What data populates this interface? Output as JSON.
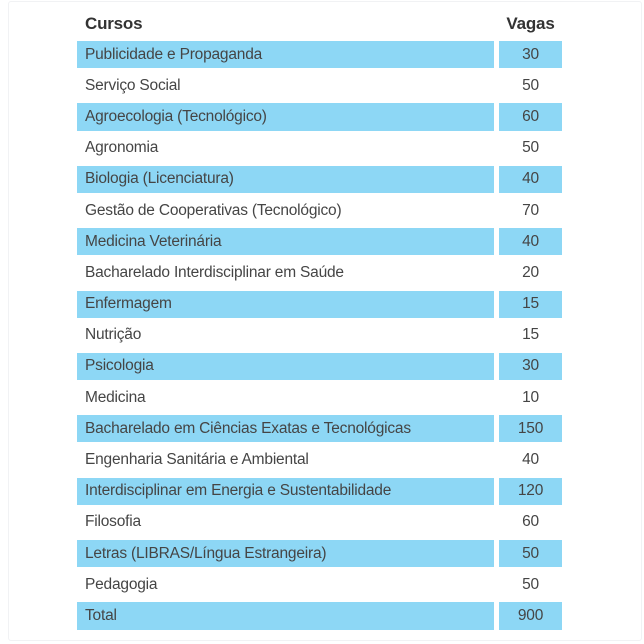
{
  "table": {
    "columns": {
      "course": "Cursos",
      "vagas": "Vagas"
    },
    "rows": [
      {
        "course": "Publicidade e Propaganda",
        "vagas": 30,
        "striped": true
      },
      {
        "course": "Serviço Social",
        "vagas": 50,
        "striped": false
      },
      {
        "course": "Agroecologia (Tecnológico)",
        "vagas": 60,
        "striped": true
      },
      {
        "course": "Agronomia",
        "vagas": 50,
        "striped": false
      },
      {
        "course": "Biologia (Licenciatura)",
        "vagas": 40,
        "striped": true
      },
      {
        "course": "Gestão de Cooperativas (Tecnológico)",
        "vagas": 70,
        "striped": false
      },
      {
        "course": "Medicina Veterinária",
        "vagas": 40,
        "striped": true
      },
      {
        "course": "Bacharelado Interdisciplinar em Saúde",
        "vagas": 20,
        "striped": false
      },
      {
        "course": "Enfermagem",
        "vagas": 15,
        "striped": true
      },
      {
        "course": "Nutrição",
        "vagas": 15,
        "striped": false
      },
      {
        "course": "Psicologia",
        "vagas": 30,
        "striped": true
      },
      {
        "course": "Medicina",
        "vagas": 10,
        "striped": false
      },
      {
        "course": "Bacharelado em Ciências Exatas e Tecnológicas",
        "vagas": 150,
        "striped": true
      },
      {
        "course": "Engenharia Sanitária e Ambiental",
        "vagas": 40,
        "striped": false
      },
      {
        "course": "Interdisciplinar em Energia e Sustentabilidade",
        "vagas": 120,
        "striped": true
      },
      {
        "course": "Filosofia",
        "vagas": 60,
        "striped": false
      },
      {
        "course": "Letras (LIBRAS/Língua Estrangeira)",
        "vagas": 50,
        "striped": true
      },
      {
        "course": "Pedagogia",
        "vagas": 50,
        "striped": false
      },
      {
        "course": "Total",
        "vagas": 900,
        "striped": true,
        "is_total": true
      }
    ]
  },
  "colors": {
    "stripe_blue": "#8DD7F5",
    "header_text": "#333333",
    "row_text": "#454545",
    "frame_border": "#F1F2F4"
  },
  "chart_data": {
    "type": "table",
    "title": "",
    "columns": [
      "Cursos",
      "Vagas"
    ],
    "categories": [
      "Publicidade e Propaganda",
      "Serviço Social",
      "Agroecologia (Tecnológico)",
      "Agronomia",
      "Biologia (Licenciatura)",
      "Gestão de Cooperativas (Tecnológico)",
      "Medicina Veterinária",
      "Bacharelado Interdisciplinar em Saúde",
      "Enfermagem",
      "Nutrição",
      "Psicologia",
      "Medicina",
      "Bacharelado em Ciências Exatas e Tecnológicas",
      "Engenharia Sanitária e Ambiental",
      "Interdisciplinar em Energia e Sustentabilidade",
      "Filosofia",
      "Letras (LIBRAS/Língua Estrangeira)",
      "Pedagogia"
    ],
    "values": [
      30,
      50,
      60,
      50,
      40,
      70,
      40,
      20,
      15,
      15,
      30,
      10,
      150,
      40,
      120,
      60,
      50,
      50
    ],
    "total_label": "Total",
    "total_value": 900
  }
}
